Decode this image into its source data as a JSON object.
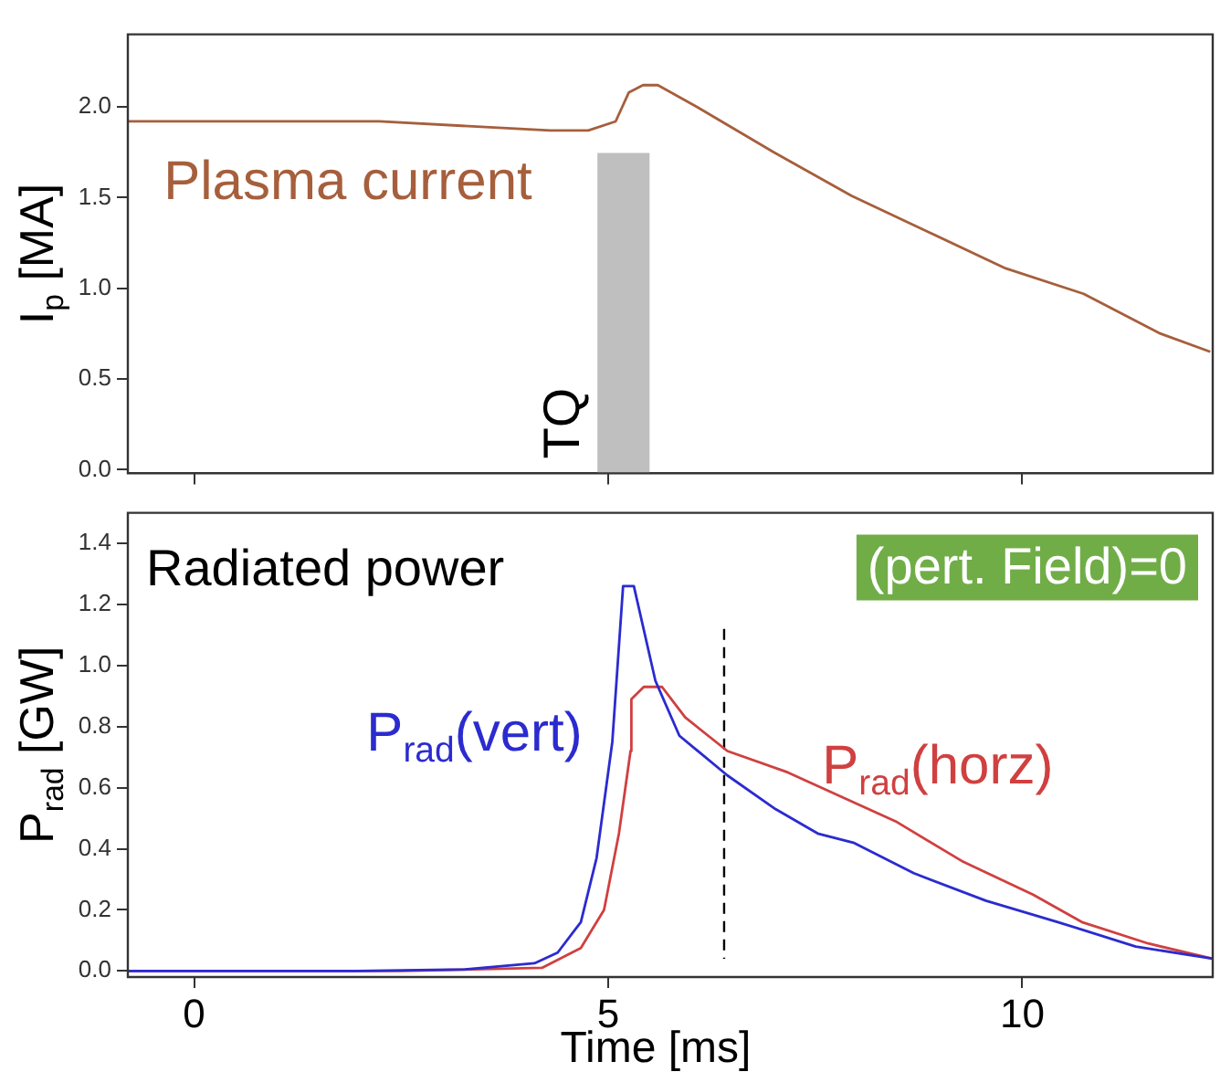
{
  "chart_data": [
    {
      "type": "line",
      "ylabel": "I$_{p}$ [MA]",
      "xlim": [
        -0.8,
        12.3
      ],
      "xticks": [
        {
          "value": 0,
          "label": null
        },
        {
          "value": 5,
          "label": null
        },
        {
          "value": 10,
          "label": null
        }
      ],
      "ylim": [
        -0.02,
        2.4
      ],
      "yticks": [
        {
          "value": 0,
          "label": "0.0"
        },
        {
          "value": 0.5,
          "label": "0.5"
        },
        {
          "value": 1,
          "label": "1.0"
        },
        {
          "value": 1.5,
          "label": "1.5"
        },
        {
          "value": 2,
          "label": "2.0"
        }
      ],
      "tick_labels": "y",
      "legend": false,
      "grid": false,
      "marker": "none",
      "line_style": "solid",
      "bands": [
        {
          "axis": "x",
          "from": 4.87,
          "to": 5.5,
          "label": "TQ",
          "color": "#bfbfbf"
        }
      ],
      "series": [
        {
          "name": "Plasma current",
          "color": "#a65f3c",
          "x": [
            -0.79,
            2.24,
            4.3,
            4.76,
            5.09,
            5.25,
            5.42,
            5.6,
            6.07,
            7.0,
            7.94,
            8.87,
            9.8,
            10.74,
            11.67,
            12.27
          ],
          "values": [
            1.92,
            1.92,
            1.87,
            1.87,
            1.92,
            2.08,
            2.12,
            2.12,
            2.0,
            1.75,
            1.51,
            1.31,
            1.11,
            0.97,
            0.75,
            0.65
          ]
        }
      ]
    },
    {
      "type": "line",
      "xlabel": "Time [ms]",
      "ylabel": "P$_{rad}$ [GW]",
      "xlim": [
        -0.8,
        12.3
      ],
      "xticks": [
        0,
        5,
        10
      ],
      "ylim": [
        -0.02,
        1.5
      ],
      "yticks": [
        {
          "value": 0,
          "label": "0.0"
        },
        {
          "value": 0.2,
          "label": "0.2"
        },
        {
          "value": 0.4,
          "label": "0.4"
        },
        {
          "value": 0.6,
          "label": "0.6"
        },
        {
          "value": 0.8,
          "label": "0.8"
        },
        {
          "value": 1,
          "label": "1.0"
        },
        {
          "value": 1.2,
          "label": "1.2"
        },
        {
          "value": 1.4,
          "label": "1.4"
        }
      ],
      "legend": false,
      "grid": false,
      "marker": "none",
      "line_style": "solid",
      "annotations": [
        "Radiated power",
        "(pert. Field)=0"
      ],
      "ref_lines": [
        {
          "axis": "x",
          "value": 6.4,
          "label": null,
          "color": "#000000",
          "line_style": "dashed"
        }
      ],
      "series": [
        {
          "name": "P$_{rad}$(vert)",
          "color": "#2b2bd0",
          "x": [
            -0.79,
            1.96,
            3.27,
            4.11,
            4.39,
            4.67,
            4.86,
            5.05,
            5.18,
            5.31,
            5.57,
            5.86,
            6.44,
            7.02,
            7.53,
            7.96,
            8.69,
            9.56,
            10.43,
            11.37,
            12.3
          ],
          "values": [
            0,
            0,
            0.005,
            0.025,
            0.06,
            0.16,
            0.37,
            0.75,
            1.26,
            1.26,
            0.95,
            0.77,
            0.64,
            0.53,
            0.45,
            0.42,
            0.32,
            0.23,
            0.16,
            0.08,
            0.04
          ]
        },
        {
          "name": "P$_{rad}$(horz)",
          "color": "#d04040",
          "x": [
            -0.79,
            2.5,
            4.2,
            4.67,
            4.95,
            5.13,
            5.27,
            5.28,
            5.43,
            5.65,
            5.93,
            6.44,
            7.17,
            7.82,
            8.47,
            9.27,
            10.13,
            10.72,
            11.52,
            12.3
          ],
          "values": [
            0,
            0,
            0.01,
            0.075,
            0.2,
            0.45,
            0.72,
            0.89,
            0.93,
            0.93,
            0.83,
            0.72,
            0.65,
            0.57,
            0.49,
            0.36,
            0.25,
            0.16,
            0.09,
            0.04
          ]
        }
      ]
    }
  ]
}
